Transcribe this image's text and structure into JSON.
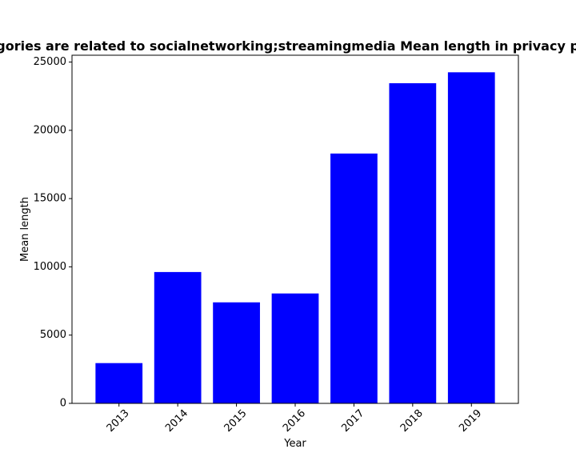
{
  "chart_data": {
    "type": "bar",
    "title": "Categories are related to socialnetworking;streamingmedia Mean length in privacy policy",
    "xlabel": "Year",
    "ylabel": "Mean length",
    "categories": [
      "2013",
      "2014",
      "2015",
      "2016",
      "2017",
      "2018",
      "2019"
    ],
    "values": [
      2950,
      9620,
      7400,
      8050,
      18300,
      23450,
      24250
    ],
    "ylim": [
      0,
      25500
    ],
    "yticks": [
      0,
      5000,
      10000,
      15000,
      20000,
      25000
    ],
    "ytick_labels": [
      "0",
      "5000",
      "10000",
      "15000",
      "20000",
      "25000"
    ],
    "bar_color": "#0000ff",
    "grid": false,
    "legend": "none"
  }
}
